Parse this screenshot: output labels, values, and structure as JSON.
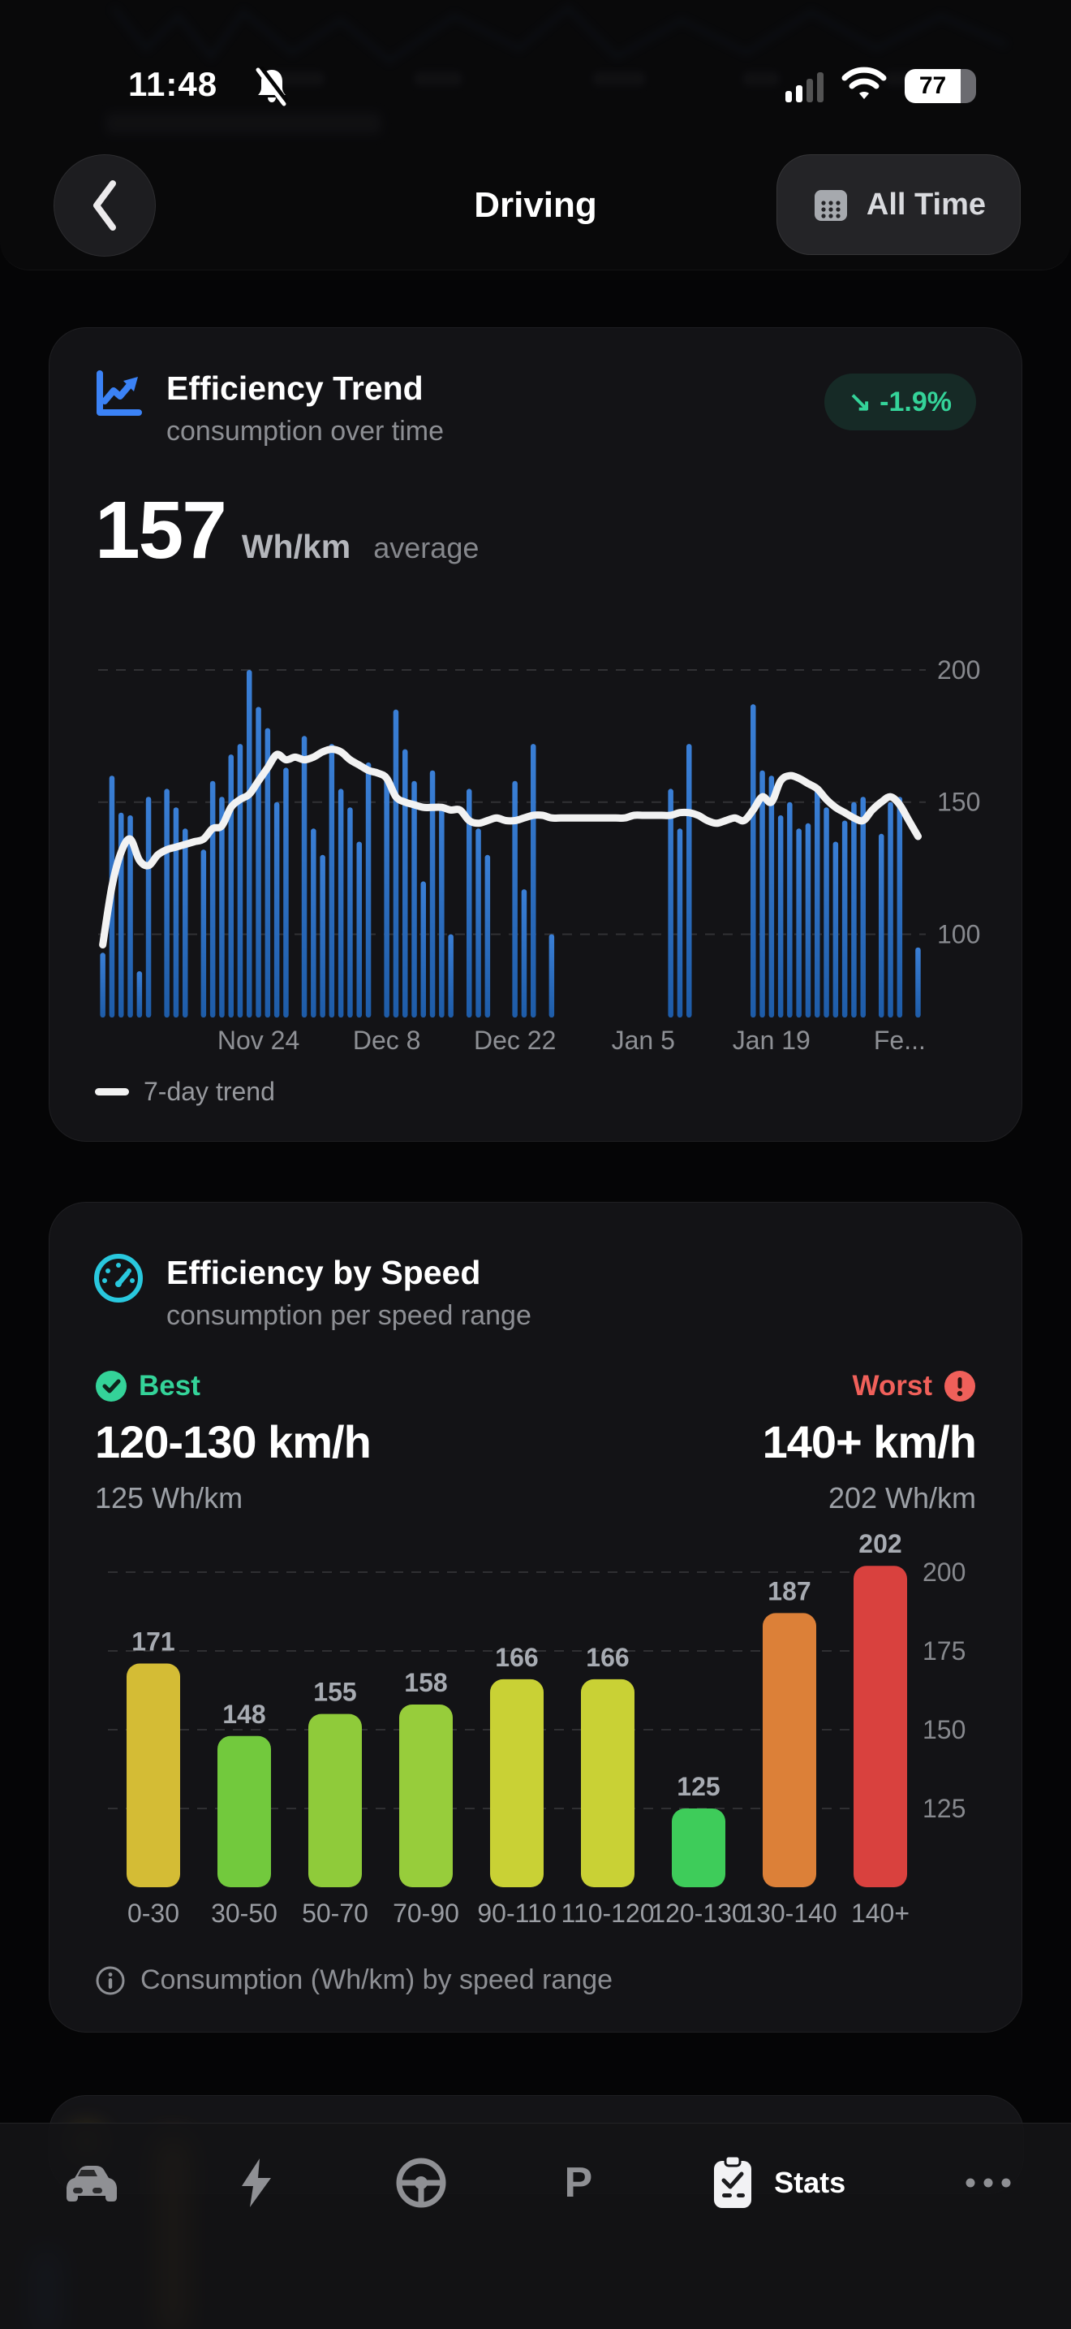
{
  "status_bar": {
    "time": "11:48",
    "battery_percent": "77"
  },
  "header": {
    "title": "Driving",
    "range_button_label": "All Time"
  },
  "trend_card": {
    "title": "Efficiency Trend",
    "subtitle": "consumption over time",
    "badge_arrow": "↘",
    "badge_value": "-1.9%",
    "stat_value": "157",
    "stat_unit": "Wh/km",
    "stat_label": "average",
    "legend": "7-day trend",
    "colors": {
      "icon": "#3b82f6",
      "badge_text": "#34d399",
      "bar_top": "#3a7fd6",
      "bar_bottom": "#1e5ca8",
      "line": "#f2f2f2"
    }
  },
  "speed_card": {
    "title": "Efficiency by Speed",
    "subtitle": "consumption per speed range",
    "best_label": "Best",
    "best_range": "120-130 km/h",
    "best_value": "125 Wh/km",
    "worst_label": "Worst",
    "worst_range": "140+ km/h",
    "worst_value": "202 Wh/km",
    "caption": "Consumption (Wh/km) by speed range",
    "colors": {
      "icon": "#29c8de",
      "best": "#34d399",
      "worst": "#f0605a"
    }
  },
  "chart_data": [
    {
      "id": "efficiency-trend",
      "type": "bar",
      "title": "Efficiency Trend",
      "ylabel": "Wh/km",
      "ylim": [
        68,
        212
      ],
      "yticks": [
        100,
        150,
        200
      ],
      "grid": true,
      "legend_position": "bottom-left",
      "x_tick_labels": [
        "Nov 24",
        "Dec 8",
        "Dec 22",
        "Jan 5",
        "Jan 19",
        "Fe..."
      ],
      "x_tick_positions": [
        17,
        31,
        45,
        59,
        73,
        87
      ],
      "n_slots": 90,
      "bar_values": [
        93,
        160,
        146,
        145,
        86,
        152,
        null,
        155,
        148,
        140,
        null,
        132,
        158,
        152,
        168,
        172,
        200,
        186,
        178,
        150,
        163,
        null,
        175,
        140,
        130,
        172,
        155,
        148,
        135,
        165,
        null,
        160,
        185,
        170,
        158,
        120,
        162,
        148,
        100,
        null,
        155,
        140,
        130,
        null,
        null,
        158,
        117,
        172,
        null,
        100,
        null,
        null,
        null,
        null,
        null,
        null,
        null,
        null,
        null,
        null,
        null,
        null,
        155,
        140,
        172,
        null,
        null,
        null,
        null,
        null,
        null,
        187,
        162,
        160,
        145,
        150,
        140,
        142,
        155,
        148,
        135,
        143,
        150,
        152,
        null,
        138,
        150,
        152,
        null,
        95
      ],
      "line_series": {
        "name": "7-day trend",
        "values": [
          96,
          118,
          131,
          136,
          128,
          126,
          130,
          132,
          133,
          134,
          135,
          136,
          140,
          141,
          148,
          151,
          153,
          158,
          163,
          168,
          166,
          167,
          166,
          167,
          169,
          170,
          169,
          166,
          164,
          162,
          161,
          159,
          152,
          150,
          149,
          148,
          148,
          148,
          147,
          147,
          143,
          142,
          143,
          144,
          143,
          143,
          144,
          145,
          145,
          144,
          144,
          144,
          144,
          144,
          144,
          144,
          144,
          144,
          145,
          145,
          145,
          145,
          145,
          146,
          146,
          145,
          143,
          142,
          143,
          144,
          143,
          147,
          152,
          150,
          158,
          160,
          159,
          157,
          155,
          151,
          148,
          146,
          144,
          143,
          147,
          150,
          152,
          149,
          143,
          137
        ]
      }
    },
    {
      "id": "efficiency-by-speed",
      "type": "bar",
      "categories": [
        "0-30",
        "30-50",
        "50-70",
        "70-90",
        "90-110",
        "110-120",
        "120-130",
        "130-140",
        "140+"
      ],
      "values": [
        171,
        148,
        155,
        158,
        166,
        166,
        125,
        187,
        202
      ],
      "bar_colors": [
        "#d4bc35",
        "#72c93d",
        "#8fcb3a",
        "#97cd3b",
        "#c9d135",
        "#c9d135",
        "#3ecc5a",
        "#dc8038",
        "#d9413e"
      ],
      "ylim": [
        100,
        215
      ],
      "yticks": [
        125,
        150,
        175,
        200
      ],
      "grid": true,
      "caption": "Consumption (Wh/km) by speed range"
    }
  ],
  "nav": {
    "items": [
      {
        "icon": "car-icon",
        "label": ""
      },
      {
        "icon": "bolt-icon",
        "label": ""
      },
      {
        "icon": "steering-wheel-icon",
        "label": ""
      },
      {
        "icon": "parking-icon",
        "label": "P"
      },
      {
        "icon": "clipboard-icon",
        "label": "Stats",
        "active": true
      },
      {
        "icon": "ellipsis-icon",
        "label": ""
      }
    ]
  }
}
